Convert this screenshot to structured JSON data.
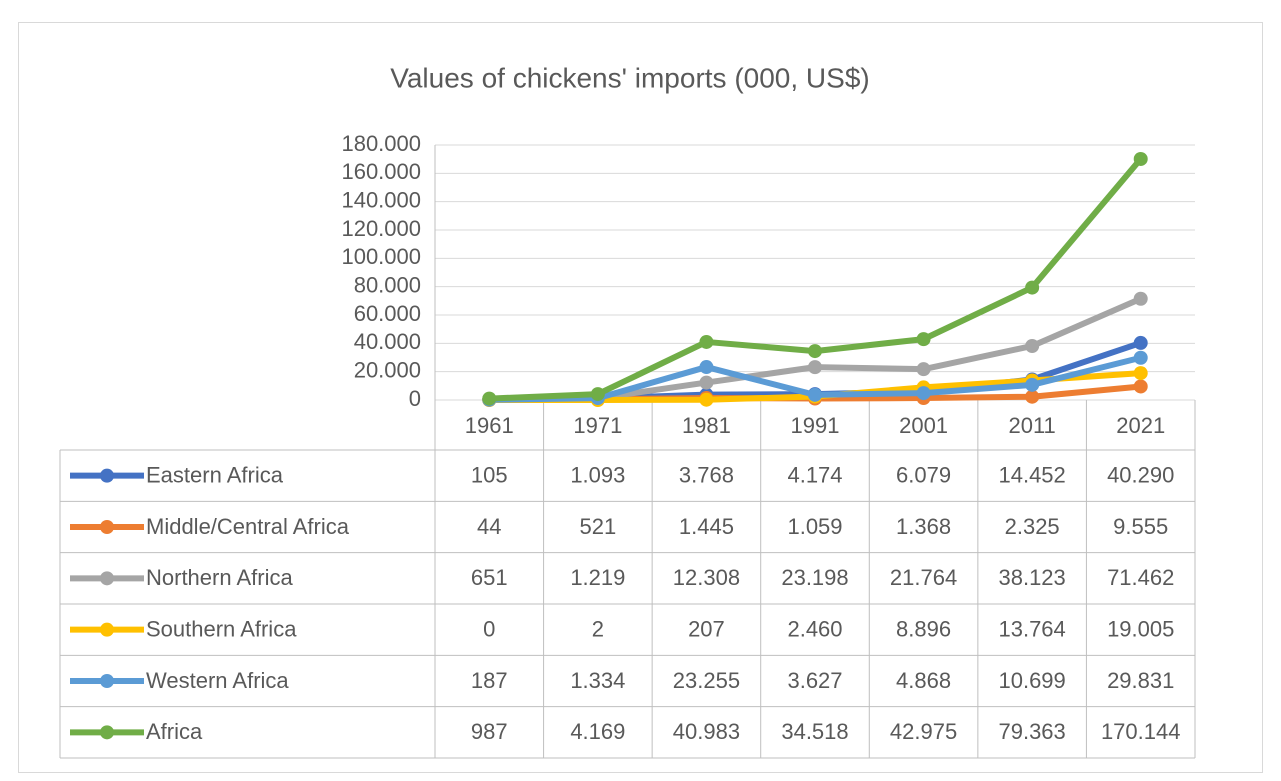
{
  "chart_data": {
    "type": "line",
    "title": "Values of chickens' imports (000, US$)",
    "categories": [
      "1961",
      "1971",
      "1981",
      "1991",
      "2001",
      "2011",
      "2021"
    ],
    "series": [
      {
        "name": "Eastern Africa",
        "color": "#4472c4",
        "values": [
          105,
          1093,
          3768,
          4174,
          6079,
          14452,
          40290
        ],
        "value_labels": [
          "105",
          "1.093",
          "3.768",
          "4.174",
          "6.079",
          "14.452",
          "40.290"
        ]
      },
      {
        "name": "Middle/Central Africa",
        "color": "#ed7d31",
        "values": [
          44,
          521,
          1445,
          1059,
          1368,
          2325,
          9555
        ],
        "value_labels": [
          "44",
          "521",
          "1.445",
          "1.059",
          "1.368",
          "2.325",
          "9.555"
        ]
      },
      {
        "name": "Northern Africa",
        "color": "#a5a5a5",
        "values": [
          651,
          1219,
          12308,
          23198,
          21764,
          38123,
          71462
        ],
        "value_labels": [
          "651",
          "1.219",
          "12.308",
          "23.198",
          "21.764",
          "38.123",
          "71.462"
        ]
      },
      {
        "name": "Southern Africa",
        "color": "#ffc000",
        "values": [
          0,
          2,
          207,
          2460,
          8896,
          13764,
          19005
        ],
        "value_labels": [
          "0",
          "2",
          "207",
          "2.460",
          "8.896",
          "13.764",
          "19.005"
        ]
      },
      {
        "name": "Western Africa",
        "color": "#5b9bd5",
        "values": [
          187,
          1334,
          23255,
          3627,
          4868,
          10699,
          29831
        ],
        "value_labels": [
          "187",
          "1.334",
          "23.255",
          "3.627",
          "4.868",
          "10.699",
          "29.831"
        ]
      },
      {
        "name": "Africa",
        "color": "#70ad47",
        "values": [
          987,
          4169,
          40983,
          34518,
          42975,
          79363,
          170144
        ],
        "value_labels": [
          "987",
          "4.169",
          "40.983",
          "34.518",
          "42.975",
          "79.363",
          "170.144"
        ]
      }
    ],
    "ylim": [
      0,
      180000
    ],
    "yticks": [
      0,
      {
        "value": 20000,
        "label": "20.000"
      },
      {
        "value": 40000,
        "label": "40.000"
      },
      {
        "value": 60000,
        "label": "60.000"
      },
      {
        "value": 80000,
        "label": "80.000"
      },
      {
        "value": 100000,
        "label": "100.000"
      },
      {
        "value": 120000,
        "label": "120.000"
      },
      {
        "value": 140000,
        "label": "140.000"
      },
      {
        "value": 160000,
        "label": "160.000"
      },
      {
        "value": 180000,
        "label": "180.000"
      }
    ],
    "grid": true
  }
}
